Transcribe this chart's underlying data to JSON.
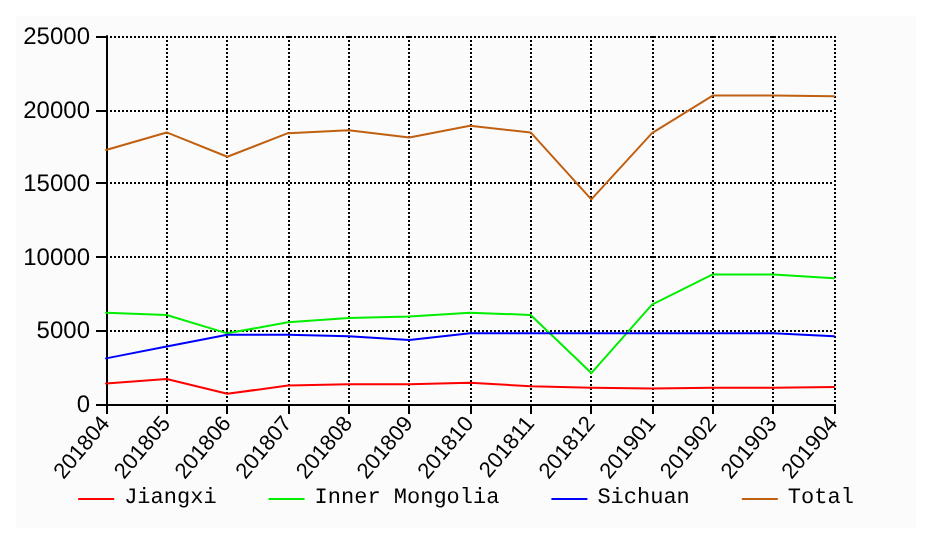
{
  "chart_data": {
    "type": "line",
    "categories": [
      "201804",
      "201805",
      "201806",
      "201807",
      "201808",
      "201809",
      "201810",
      "201811",
      "201812",
      "201901",
      "201902",
      "201903",
      "201904"
    ],
    "series": [
      {
        "name": "Jiangxi",
        "color": "#ff0000",
        "values": [
          1400,
          1700,
          700,
          1250,
          1350,
          1350,
          1450,
          1200,
          1100,
          1050,
          1100,
          1100,
          1150
        ]
      },
      {
        "name": "Inner Mongolia",
        "color": "#00ee00",
        "values": [
          6200,
          6050,
          4800,
          5550,
          5850,
          5950,
          6200,
          6050,
          2100,
          6750,
          8800,
          8800,
          8550
        ]
      },
      {
        "name": "Sichuan",
        "color": "#0000ff",
        "values": [
          3100,
          3900,
          4700,
          4700,
          4600,
          4350,
          4800,
          4800,
          4800,
          4800,
          4800,
          4800,
          4600
        ]
      },
      {
        "name": "Total",
        "color": "#c06010",
        "values": [
          17250,
          18450,
          16800,
          18400,
          18600,
          18100,
          18900,
          18450,
          13900,
          18400,
          20950,
          20950,
          20900
        ]
      }
    ],
    "ylim": [
      0,
      25000
    ],
    "yticks": [
      0,
      5000,
      10000,
      15000,
      20000,
      25000
    ],
    "grid": true,
    "legend": "bottom",
    "marker": "none",
    "line_style": "solid"
  }
}
